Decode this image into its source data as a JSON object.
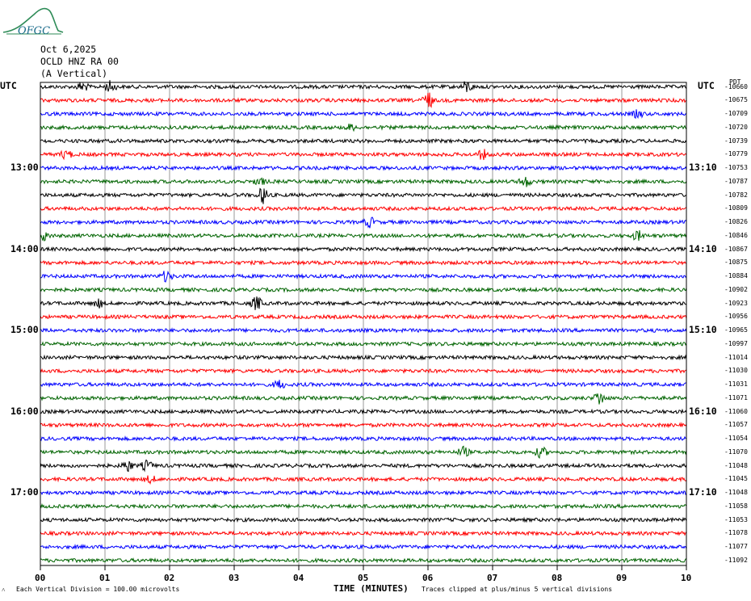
{
  "logo": {
    "text": "OFGC",
    "icon": "mountain-logo-icon",
    "color": "#1a6b8a"
  },
  "header": {
    "date": "Oct 6,2025",
    "station": "OCLD HNZ RA 00",
    "component": "(A Vertical)"
  },
  "utc_left": "UTC",
  "utc_right": "UTC",
  "right_top_marker": "PDT",
  "chart_data": {
    "type": "line",
    "title": "",
    "xlabel": "TIME (MINUTES)",
    "xlim": [
      0,
      10
    ],
    "x_ticks": [
      "00",
      "01",
      "02",
      "03",
      "04",
      "05",
      "06",
      "07",
      "08",
      "09",
      "10"
    ],
    "trace_colors": [
      "#000000",
      "#ff0000",
      "#0000ff",
      "#006400"
    ],
    "grid": "vertical lines at each minute",
    "left_time_labels": [
      {
        "row": 6,
        "label": "13:00"
      },
      {
        "row": 12,
        "label": "14:00"
      },
      {
        "row": 18,
        "label": "15:00"
      },
      {
        "row": 24,
        "label": "16:00"
      },
      {
        "row": 30,
        "label": "17:00"
      }
    ],
    "right_time_labels": [
      {
        "row": 6,
        "label": "13:10"
      },
      {
        "row": 12,
        "label": "14:10"
      },
      {
        "row": 18,
        "label": "15:10"
      },
      {
        "row": 24,
        "label": "16:10"
      },
      {
        "row": 30,
        "label": "17:10"
      }
    ],
    "trace_offsets": [
      "-10660",
      "-10675",
      "-10709",
      "-10720",
      "-10739",
      "-10779",
      "-10753",
      "-10787",
      "-10782",
      "-10809",
      "-10826",
      "-10846",
      "-10867",
      "-10875",
      "-10884",
      "-10902",
      "-10923",
      "-10956",
      "-10965",
      "-10997",
      "-11014",
      "-11030",
      "-11031",
      "-11071",
      "-11060",
      "-11057",
      "-11054",
      "-11070",
      "-11048",
      "-11045",
      "-11048",
      "-11058",
      "-11053",
      "-11078",
      "-11077",
      "-11092"
    ],
    "events": [
      {
        "row": 0,
        "minute": 0.65,
        "amp": 2.0
      },
      {
        "row": 0,
        "minute": 1.08,
        "amp": 2.2
      },
      {
        "row": 0,
        "minute": 6.6,
        "amp": 2.4
      },
      {
        "row": 1,
        "minute": 6.0,
        "amp": 3.5
      },
      {
        "row": 2,
        "minute": 9.25,
        "amp": 1.5
      },
      {
        "row": 3,
        "minute": 4.8,
        "amp": 1.2
      },
      {
        "row": 5,
        "minute": 0.4,
        "amp": 1.8
      },
      {
        "row": 5,
        "minute": 6.85,
        "amp": 2.0
      },
      {
        "row": 7,
        "minute": 7.5,
        "amp": 2.2
      },
      {
        "row": 7,
        "minute": 3.4,
        "amp": 1.4
      },
      {
        "row": 8,
        "minute": 3.45,
        "amp": 3.5
      },
      {
        "row": 10,
        "minute": 5.1,
        "amp": 2.0
      },
      {
        "row": 11,
        "minute": 0.05,
        "amp": 2.0
      },
      {
        "row": 11,
        "minute": 9.25,
        "amp": 2.0
      },
      {
        "row": 14,
        "minute": 1.95,
        "amp": 2.2
      },
      {
        "row": 16,
        "minute": 3.35,
        "amp": 2.8
      },
      {
        "row": 16,
        "minute": 0.9,
        "amp": 1.6
      },
      {
        "row": 22,
        "minute": 3.7,
        "amp": 1.8
      },
      {
        "row": 23,
        "minute": 8.65,
        "amp": 2.8
      },
      {
        "row": 27,
        "minute": 6.55,
        "amp": 2.0
      },
      {
        "row": 27,
        "minute": 7.75,
        "amp": 2.2
      },
      {
        "row": 28,
        "minute": 1.35,
        "amp": 2.2
      },
      {
        "row": 28,
        "minute": 1.65,
        "amp": 2.0
      },
      {
        "row": 29,
        "minute": 1.7,
        "amp": 1.4
      }
    ]
  },
  "footer": {
    "division_note": "Each Vertical Division = 100.00 microvolts",
    "clip_note": "Traces clipped at plus/minus 5 vertical divisions"
  }
}
